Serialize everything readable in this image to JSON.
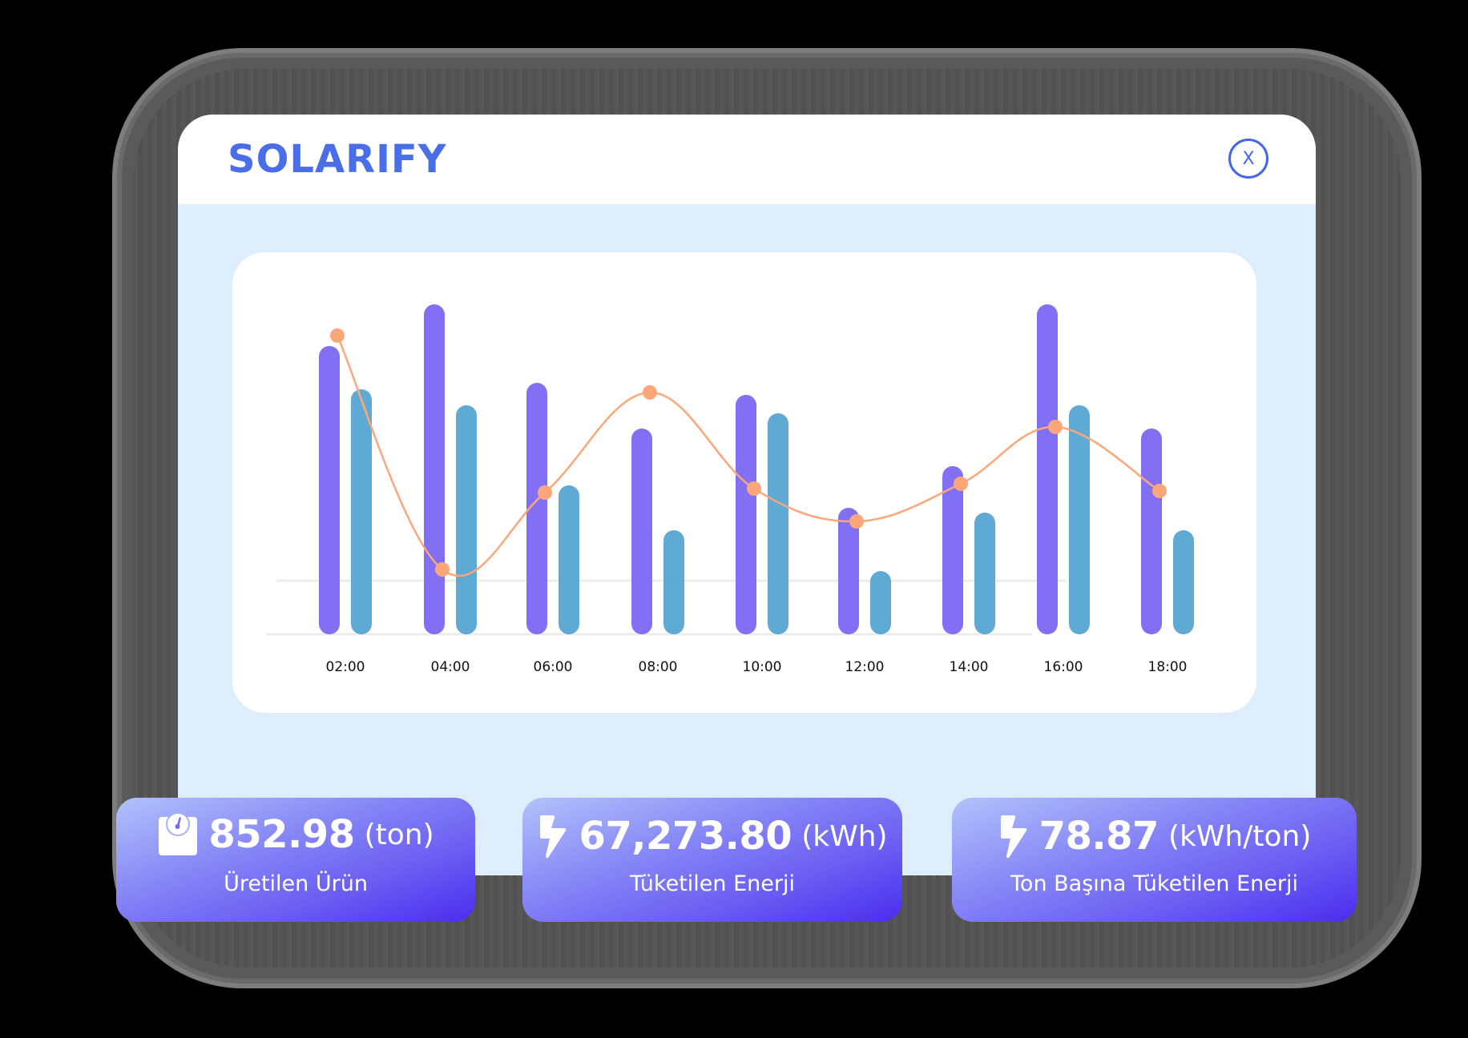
{
  "app": {
    "brand": "SOLARIFY",
    "close_label": "X",
    "colors": {
      "brand": "#4a6ee8",
      "window_bg": "#ddedfc",
      "bar_primary": "#8170f4",
      "bar_secondary": "#5eaad5",
      "line": "#fca67a",
      "card_gradient_start": "#b2c2fb",
      "card_gradient_end": "#4a2df0"
    }
  },
  "chart": {
    "x_labels": [
      "02:00",
      "04:00",
      "06:00",
      "08:00",
      "10:00",
      "12:00",
      "14:00",
      "16:00",
      "18:00"
    ]
  },
  "chart_data": {
    "type": "bar",
    "title": "",
    "xlabel": "",
    "ylabel": "",
    "categories": [
      "02:00",
      "04:00",
      "06:00",
      "08:00",
      "10:00",
      "12:00",
      "14:00",
      "16:00",
      "18:00"
    ],
    "series": [
      {
        "name": "Series A (purple bars)",
        "type": "bar",
        "color": "#8170f4",
        "values": [
          360,
          412,
          314,
          257,
          299,
          158,
          210,
          412,
          257
        ]
      },
      {
        "name": "Series B (blue bars)",
        "type": "bar",
        "color": "#5eaad5",
        "values": [
          306,
          286,
          186,
          130,
          276,
          79,
          152,
          286,
          130
        ]
      },
      {
        "name": "Series C (orange line)",
        "type": "line",
        "smooth": true,
        "color": "#fca67a",
        "values": [
          373,
          81,
          177,
          302,
          182,
          141,
          188,
          259,
          179
        ]
      }
    ],
    "ylim": [
      0,
      440
    ],
    "grid": true,
    "grid_lines": [
      0,
      67
    ],
    "legend": "none",
    "note": "Values are relative pixel heights read from baseline; no y-axis ticks shown"
  },
  "stats": [
    {
      "icon": "scale-icon",
      "value": "852.98",
      "unit": "(ton)",
      "label": "Üretilen Ürün"
    },
    {
      "icon": "lightning-icon",
      "value": "67,273.80",
      "unit": "(kWh)",
      "label": "Tüketilen Enerji"
    },
    {
      "icon": "lightning-icon",
      "value": "78.87",
      "unit": "(kWh/ton)",
      "label": "Ton Başına Tüketilen Enerji"
    }
  ]
}
